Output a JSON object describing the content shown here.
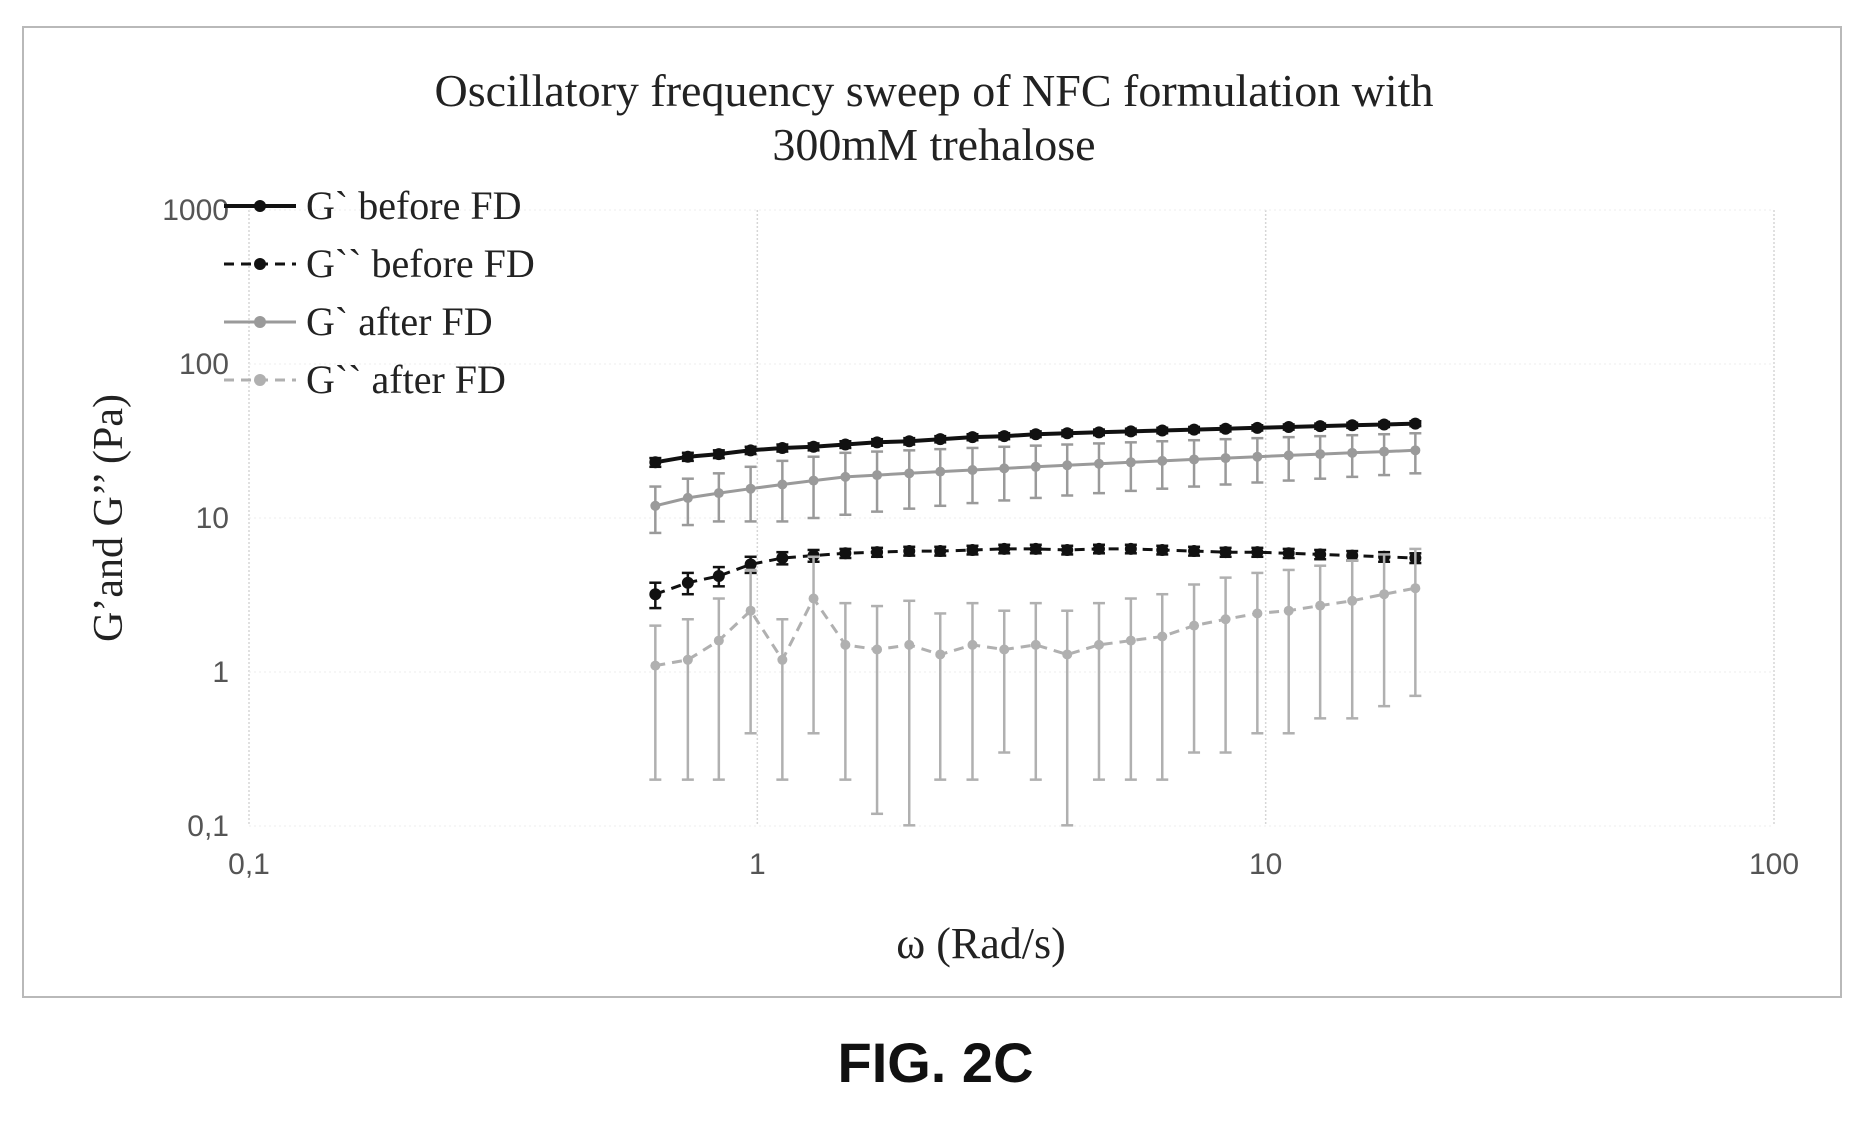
{
  "figure_label": "FIG. 2C",
  "chart_data": {
    "type": "line",
    "title": "Oscillatory frequency sweep of NFC formulation with 300mM trehalose",
    "title_lines": [
      "Oscillatory frequency sweep of NFC formulation with",
      "300mM trehalose"
    ],
    "xlabel": "ω (Rad/s)",
    "ylabel": "G’and G’’ (Pa)",
    "x_scale": "log",
    "y_scale": "log",
    "xlim": [
      0.1,
      100
    ],
    "ylim": [
      0.1,
      1000
    ],
    "x_ticks": [
      0.1,
      1,
      10,
      100
    ],
    "x_tick_labels": [
      "0,1",
      "1",
      "10",
      "100"
    ],
    "y_ticks": [
      0.1,
      1,
      10,
      100,
      1000
    ],
    "y_tick_labels": [
      "0,1",
      "1",
      "10",
      "100",
      "1000"
    ],
    "grid": "vertical",
    "legend_position": "top-left",
    "x": [
      0.63,
      0.73,
      0.84,
      0.97,
      1.12,
      1.29,
      1.49,
      1.72,
      1.99,
      2.29,
      2.65,
      3.06,
      3.53,
      4.07,
      4.7,
      5.43,
      6.26,
      7.23,
      8.34,
      9.63,
      11.1,
      12.8,
      14.8,
      17.1,
      19.7
    ],
    "series": [
      {
        "name": "G` before FD",
        "color": "#111111",
        "line_style": "solid",
        "values": [
          23.0,
          25.0,
          26.0,
          27.5,
          28.5,
          29.0,
          30.0,
          31.0,
          31.5,
          32.5,
          33.5,
          34.0,
          35.0,
          35.5,
          36.0,
          36.5,
          37.0,
          37.5,
          38.0,
          38.5,
          39.0,
          39.5,
          40.0,
          40.5,
          41.0
        ],
        "errors": [
          1.5,
          1.5,
          1.5,
          1.5,
          1.5,
          1.5,
          1.5,
          1.5,
          1.5,
          1.5,
          1.5,
          1.5,
          1.5,
          1.5,
          1.5,
          1.5,
          1.5,
          1.5,
          1.5,
          1.5,
          1.5,
          1.5,
          1.5,
          1.5,
          1.5
        ]
      },
      {
        "name": "G`` before FD",
        "color": "#111111",
        "line_style": "dashed",
        "values": [
          3.2,
          3.8,
          4.2,
          5.0,
          5.5,
          5.7,
          5.9,
          6.0,
          6.1,
          6.1,
          6.2,
          6.3,
          6.3,
          6.2,
          6.3,
          6.3,
          6.2,
          6.1,
          6.0,
          6.0,
          5.9,
          5.8,
          5.7,
          5.6,
          5.5
        ],
        "errors": [
          0.6,
          0.6,
          0.6,
          0.6,
          0.5,
          0.5,
          0.4,
          0.4,
          0.4,
          0.4,
          0.4,
          0.4,
          0.4,
          0.4,
          0.4,
          0.4,
          0.4,
          0.4,
          0.4,
          0.4,
          0.4,
          0.4,
          0.4,
          0.4,
          0.4
        ]
      },
      {
        "name": "G` after FD",
        "color": "#9a9a9a",
        "line_style": "solid",
        "values": [
          12.0,
          13.5,
          14.5,
          15.5,
          16.5,
          17.5,
          18.5,
          19.0,
          19.5,
          20.0,
          20.5,
          21.0,
          21.5,
          22.0,
          22.5,
          23.0,
          23.5,
          24.0,
          24.5,
          25.0,
          25.5,
          26.0,
          26.5,
          27.0,
          27.5
        ],
        "errors": [
          4.0,
          4.5,
          5.0,
          6.0,
          7.0,
          7.5,
          8.0,
          8.0,
          8.0,
          8.0,
          8.0,
          8.0,
          8.0,
          8.0,
          8.0,
          8.0,
          8.0,
          8.0,
          8.0,
          8.0,
          8.0,
          8.0,
          8.0,
          8.0,
          8.0
        ]
      },
      {
        "name": "G`` after FD",
        "color": "#b0b0b0",
        "line_style": "dashed",
        "values": [
          1.1,
          1.2,
          1.6,
          2.5,
          1.2,
          3.0,
          1.5,
          1.4,
          1.5,
          1.3,
          1.5,
          1.4,
          1.5,
          1.3,
          1.5,
          1.6,
          1.7,
          2.0,
          2.2,
          2.4,
          2.5,
          2.7,
          2.9,
          3.2,
          3.5
        ],
        "errors": [
          0.9,
          1.0,
          1.4,
          2.1,
          1.0,
          2.6,
          1.3,
          1.28,
          1.4,
          1.1,
          1.3,
          1.1,
          1.3,
          1.2,
          1.3,
          1.4,
          1.5,
          1.7,
          1.9,
          2.0,
          2.1,
          2.2,
          2.4,
          2.6,
          2.8
        ]
      }
    ]
  }
}
